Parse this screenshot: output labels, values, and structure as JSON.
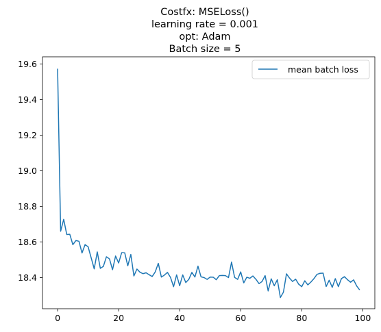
{
  "chart_data": {
    "type": "line",
    "title_lines": [
      "Costfx: MSELoss()",
      "learning rate = 0.001",
      "opt: Adam",
      "Batch size = 5"
    ],
    "xlabel": "",
    "ylabel": "",
    "xlim": [
      -4.95,
      103.95
    ],
    "ylim": [
      18.225,
      19.64
    ],
    "x_ticks": [
      0,
      20,
      40,
      60,
      80,
      100
    ],
    "y_ticks": [
      18.4,
      18.6,
      18.8,
      19.0,
      19.2,
      19.4,
      19.6
    ],
    "y_tick_labels": [
      "18.4",
      "18.6",
      "18.8",
      "19.0",
      "19.2",
      "19.4",
      "19.6"
    ],
    "grid": false,
    "legend_position": "top-right",
    "series": [
      {
        "name": "mean batch loss",
        "color": "#1f77b4",
        "x_start": 0,
        "x_step": 1,
        "values": [
          19.573,
          18.66,
          18.727,
          18.642,
          18.643,
          18.585,
          18.608,
          18.604,
          18.538,
          18.585,
          18.573,
          18.511,
          18.449,
          18.544,
          18.452,
          18.463,
          18.517,
          18.505,
          18.444,
          18.521,
          18.482,
          18.54,
          18.539,
          18.466,
          18.53,
          18.409,
          18.448,
          18.43,
          18.422,
          18.427,
          18.416,
          18.406,
          18.432,
          18.48,
          18.403,
          18.414,
          18.429,
          18.401,
          18.349,
          18.415,
          18.354,
          18.415,
          18.372,
          18.39,
          18.429,
          18.403,
          18.464,
          18.404,
          18.4,
          18.39,
          18.403,
          18.402,
          18.388,
          18.411,
          18.412,
          18.411,
          18.4,
          18.487,
          18.401,
          18.39,
          18.432,
          18.37,
          18.402,
          18.396,
          18.409,
          18.39,
          18.366,
          18.378,
          18.411,
          18.325,
          18.393,
          18.354,
          18.388,
          18.288,
          18.318,
          18.421,
          18.397,
          18.378,
          18.391,
          18.363,
          18.349,
          18.382,
          18.359,
          18.375,
          18.394,
          18.418,
          18.424,
          18.425,
          18.35,
          18.385,
          18.345,
          18.394,
          18.349,
          18.394,
          18.405,
          18.388,
          18.374,
          18.387,
          18.353,
          18.33
        ]
      }
    ]
  }
}
